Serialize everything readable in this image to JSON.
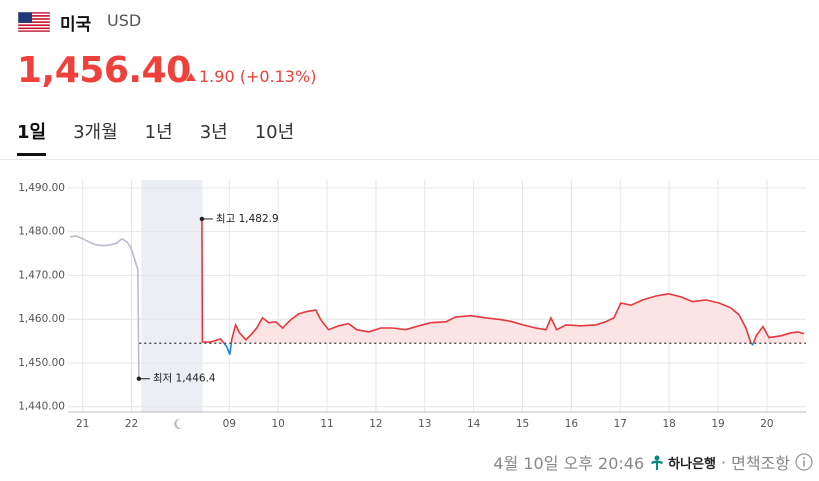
{
  "header": {
    "country": "미국",
    "currency": "USD",
    "price": "1,456.40",
    "change": "1.90 (+0.13%)"
  },
  "tabs": [
    "1일",
    "3개월",
    "1년",
    "3년",
    "10년"
  ],
  "chart_data": {
    "type": "line",
    "xlim": [
      -0.3,
      14.8
    ],
    "ylim": [
      1438.8,
      1491.8
    ],
    "xticks": [
      {
        "value": 0,
        "label": "21"
      },
      {
        "value": 1,
        "label": "22"
      },
      {
        "value": 3,
        "label": "09"
      },
      {
        "value": 4,
        "label": "10"
      },
      {
        "value": 5,
        "label": "11"
      },
      {
        "value": 6,
        "label": "12"
      },
      {
        "value": 7,
        "label": "13"
      },
      {
        "value": 8,
        "label": "14"
      },
      {
        "value": 9,
        "label": "15"
      },
      {
        "value": 10,
        "label": "16"
      },
      {
        "value": 11,
        "label": "17"
      },
      {
        "value": 12,
        "label": "18"
      },
      {
        "value": 13,
        "label": "19"
      },
      {
        "value": 14,
        "label": "20"
      }
    ],
    "yticks": [
      {
        "value": 1440,
        "label": "1,440.00"
      },
      {
        "value": 1450,
        "label": "1,450.00"
      },
      {
        "value": 1460,
        "label": "1,460.00"
      },
      {
        "value": 1470,
        "label": "1,470.00"
      },
      {
        "value": 1480,
        "label": "1,480.00"
      },
      {
        "value": 1490,
        "label": "1,490.00"
      }
    ],
    "grid": true,
    "night_band": [
      1.2,
      2.45
    ],
    "reference_line": 1454.5,
    "series": [
      {
        "color": "#b9bccb",
        "x": [
          -0.25,
          -0.14,
          -0.04,
          0.12,
          0.27,
          0.41,
          0.57,
          0.7,
          0.8,
          0.9,
          0.98,
          1.04,
          1.08,
          1.13,
          1.15
        ],
        "values": [
          1478.8,
          1479.0,
          1478.6,
          1477.7,
          1477.0,
          1476.8,
          1477.0,
          1477.4,
          1478.4,
          1477.7,
          1476.5,
          1474.5,
          1473.1,
          1471.3,
          1446.4
        ]
      },
      {
        "color": "#e8373d",
        "below_color": "#1e88e5",
        "fill_color": "#fde4e4",
        "x": [
          2.44,
          2.45,
          2.62,
          2.82,
          2.95,
          3.01,
          3.05,
          3.13,
          3.21,
          3.34,
          3.44,
          3.56,
          3.68,
          3.81,
          3.95,
          4.09,
          4.26,
          4.42,
          4.56,
          4.77,
          4.87,
          5.03,
          5.24,
          5.44,
          5.61,
          5.85,
          6.1,
          6.34,
          6.61,
          6.88,
          7.12,
          7.43,
          7.63,
          7.94,
          8.25,
          8.55,
          8.8,
          9.01,
          9.27,
          9.48,
          9.58,
          9.7,
          9.89,
          10.19,
          10.5,
          10.7,
          10.87,
          11.01,
          11.22,
          11.46,
          11.73,
          11.99,
          12.24,
          12.48,
          12.75,
          13.02,
          13.26,
          13.43,
          13.57,
          13.67,
          13.71,
          13.79,
          13.92,
          14.04,
          14.29,
          14.49,
          14.63,
          14.76
        ],
        "values": [
          1482.9,
          1454.8,
          1454.8,
          1455.5,
          1453.7,
          1451.9,
          1455.3,
          1458.7,
          1456.9,
          1455.3,
          1456.4,
          1458.0,
          1460.3,
          1459.2,
          1459.4,
          1458.0,
          1459.9,
          1461.2,
          1461.7,
          1462.1,
          1459.9,
          1457.6,
          1458.5,
          1459.0,
          1457.6,
          1457.1,
          1458.0,
          1458.0,
          1457.6,
          1458.5,
          1459.2,
          1459.4,
          1460.5,
          1460.8,
          1460.3,
          1459.9,
          1459.4,
          1458.7,
          1458.0,
          1457.6,
          1460.3,
          1457.6,
          1458.7,
          1458.5,
          1458.7,
          1459.4,
          1460.3,
          1463.7,
          1463.2,
          1464.4,
          1465.3,
          1465.8,
          1465.1,
          1464.0,
          1464.4,
          1463.7,
          1462.6,
          1461.0,
          1458.0,
          1454.6,
          1454.2,
          1456.4,
          1458.3,
          1455.8,
          1456.2,
          1456.9,
          1457.1,
          1456.7
        ]
      }
    ],
    "annotations": [
      {
        "label": "최고 1,482.9",
        "x": 2.44,
        "y": 1482.9
      },
      {
        "label": "최저 1,446.4",
        "x": 1.15,
        "y": 1446.4
      }
    ]
  },
  "footer": {
    "timestamp": "4월 10일 오후 20:46",
    "bank": "하나은행",
    "disclaimer": "면책조항"
  }
}
